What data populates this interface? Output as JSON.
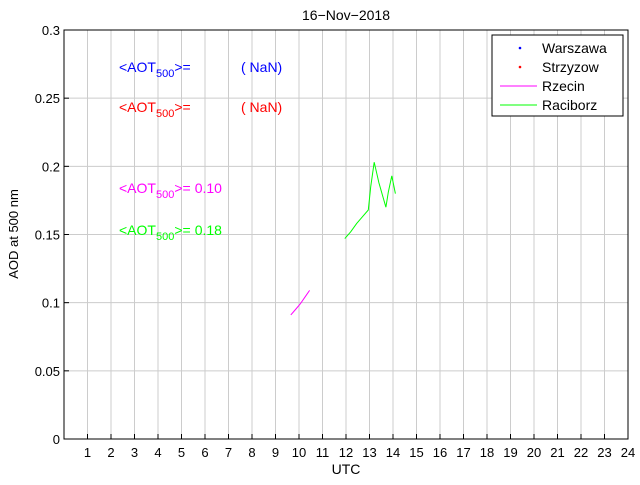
{
  "chart_data": {
    "type": "line",
    "title": "16−Nov−2018",
    "xlabel": "UTC",
    "ylabel": "AOD at 500 nm",
    "xlim": [
      0,
      24
    ],
    "ylim": [
      0,
      0.3
    ],
    "grid": true,
    "legend_position": "top-right",
    "x_ticks": [
      "1",
      "2",
      "3",
      "4",
      "5",
      "6",
      "7",
      "8",
      "9",
      "10",
      "11",
      "12",
      "13",
      "14",
      "15",
      "16",
      "17",
      "18",
      "19",
      "20",
      "21",
      "22",
      "23",
      "24"
    ],
    "y_ticks": [
      "0",
      "0.05",
      "0.1",
      "0.15",
      "0.2",
      "0.25",
      "0.3"
    ],
    "series": [
      {
        "name": "Warszawa",
        "color": "#0000ff",
        "marker": "point",
        "points": []
      },
      {
        "name": "Strzyzow",
        "color": "#ff0000",
        "marker": "point",
        "points": []
      },
      {
        "name": "Rzecin",
        "color": "#ff00ff",
        "marker": "line",
        "points": [
          [
            9.65,
            0.091
          ],
          [
            9.85,
            0.095
          ],
          [
            10.05,
            0.099
          ],
          [
            10.25,
            0.104
          ],
          [
            10.45,
            0.109
          ]
        ]
      },
      {
        "name": "Raciborz",
        "color": "#00ff00",
        "marker": "line",
        "points": [
          [
            11.95,
            0.147
          ],
          [
            12.2,
            0.152
          ],
          [
            12.45,
            0.158
          ],
          [
            12.7,
            0.163
          ],
          [
            12.95,
            0.168
          ],
          [
            13.05,
            0.185
          ],
          [
            13.2,
            0.203
          ],
          [
            13.4,
            0.188
          ],
          [
            13.55,
            0.179
          ],
          [
            13.7,
            0.17
          ],
          [
            13.8,
            0.181
          ],
          [
            13.95,
            0.193
          ],
          [
            14.1,
            0.18
          ]
        ]
      }
    ],
    "annotations": [
      {
        "prefix": "<AOT",
        "sub": "500",
        "suffix": ">=",
        "value": "( NaN)",
        "color": "#0000ff"
      },
      {
        "prefix": "<AOT",
        "sub": "500",
        "suffix": ">=",
        "value": "( NaN)",
        "color": "#ff0000"
      },
      {
        "prefix": "<AOT",
        "sub": "500",
        "suffix": ">=",
        "value": "0.10",
        "color": "#ff00ff"
      },
      {
        "prefix": "<AOT",
        "sub": "500",
        "suffix": ">=",
        "value": "0.18",
        "color": "#00ff00"
      }
    ]
  }
}
